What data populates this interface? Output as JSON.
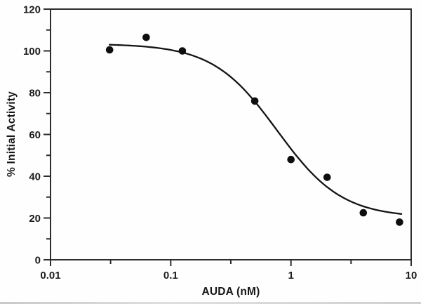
{
  "figure": {
    "background": "#fefefe",
    "axis_color": "#2d2d2d",
    "text_color": "#1c1c1c",
    "point_color": "#0e0e0e",
    "curve_color": "#141414"
  },
  "chart_data": {
    "type": "scatter",
    "title": "",
    "xlabel": "AUDA (nM)",
    "ylabel": "% Initial Activity",
    "x_scale": "log",
    "y_scale": "linear",
    "xlim": [
      0.01,
      10
    ],
    "ylim": [
      0,
      120
    ],
    "grid": false,
    "legend": false,
    "x_major_ticks": [
      0.01,
      0.1,
      1,
      10
    ],
    "x_major_tick_labels": [
      "0.01",
      "0.1",
      "1",
      "10"
    ],
    "x_minor_ticks": [
      0.0316,
      0.316,
      3.162
    ],
    "y_major_ticks": [
      0,
      20,
      40,
      60,
      80,
      100,
      120
    ],
    "y_major_tick_labels": [
      "0",
      "20",
      "40",
      "60",
      "80",
      "100",
      "120"
    ],
    "y_minor_ticks": [
      10,
      30,
      50,
      70,
      90,
      110
    ],
    "points": [
      {
        "x": 0.031,
        "y": 100.5
      },
      {
        "x": 0.0625,
        "y": 106.5
      },
      {
        "x": 0.125,
        "y": 100.0
      },
      {
        "x": 0.5,
        "y": 76.0
      },
      {
        "x": 1,
        "y": 48.0
      },
      {
        "x": 2,
        "y": 39.5
      },
      {
        "x": 4,
        "y": 22.5
      },
      {
        "x": 8,
        "y": 18.0
      }
    ],
    "fit_curve": {
      "model": "4PL",
      "top": 103.4,
      "bottom": 20.2,
      "ic50": 0.77,
      "hill": 1.62,
      "x_start": 0.031,
      "x_end": 8.3
    }
  }
}
